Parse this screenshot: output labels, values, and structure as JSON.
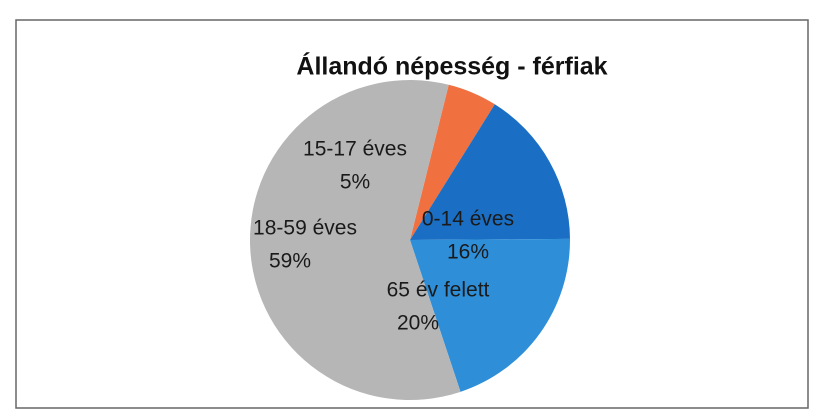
{
  "chart_data": {
    "type": "pie",
    "title": "Állandó népesség - férfiak",
    "categories": [
      "15-17 éves",
      "0-14 éves",
      "65 év felett",
      "18-59 éves"
    ],
    "values": [
      5,
      16,
      20,
      59
    ],
    "value_labels": [
      "5%",
      "16%",
      "20%",
      "59%"
    ],
    "colors": [
      "#f07040",
      "#1a6fc4",
      "#2e8fd8",
      "#b6b6b6"
    ]
  }
}
